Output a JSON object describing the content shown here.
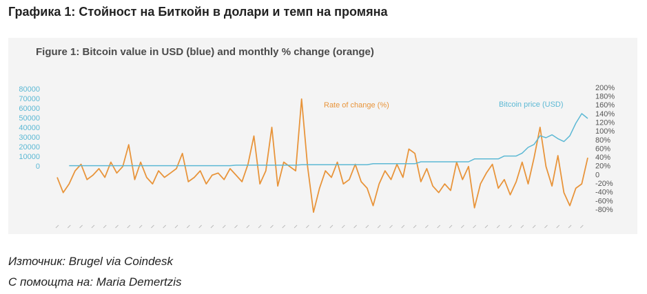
{
  "heading": "Графика 1: Стойност на Биткойн в долари и темп на промяна",
  "chart_data": {
    "type": "line",
    "title": "Figure 1: Bitcoin value in USD (blue) and monthly % change (orange)",
    "categories": [
      null,
      null,
      null,
      null,
      null,
      null,
      null,
      null,
      null,
      null,
      null,
      null,
      null,
      null,
      null,
      null,
      null,
      null,
      null,
      null,
      null,
      null,
      null,
      null,
      null,
      null,
      null,
      null,
      null,
      null,
      null,
      null,
      null,
      null,
      null,
      null,
      null,
      null,
      null,
      null,
      null,
      null,
      null,
      null,
      null,
      null,
      null,
      null,
      null,
      null,
      null,
      null,
      null,
      null,
      null,
      null,
      null,
      null,
      null,
      null,
      null,
      null,
      null,
      null,
      null,
      null,
      null,
      null,
      null,
      null,
      null,
      null,
      null,
      null,
      null,
      null,
      null,
      null,
      null,
      null,
      null,
      null,
      null,
      null,
      null,
      null,
      null,
      null,
      null,
      null
    ],
    "series": [
      {
        "name": "Rate of change (%)",
        "color": "#e8943a",
        "axis": "y2",
        "values": [
          -5,
          -40,
          -20,
          10,
          25,
          -10,
          0,
          15,
          -5,
          30,
          5,
          20,
          70,
          -10,
          30,
          -5,
          -20,
          10,
          -5,
          5,
          15,
          50,
          -15,
          -5,
          10,
          -20,
          0,
          5,
          -10,
          15,
          0,
          -15,
          25,
          90,
          -20,
          10,
          110,
          -25,
          30,
          20,
          10,
          175,
          20,
          -85,
          -30,
          10,
          -5,
          30,
          -20,
          -10,
          25,
          -15,
          -30,
          -70,
          -20,
          10,
          -10,
          25,
          -5,
          60,
          50,
          -15,
          15,
          -25,
          -40,
          -20,
          -35,
          30,
          -10,
          20,
          -75,
          -20,
          5,
          25,
          -30,
          -10,
          -45,
          -15,
          30,
          -20,
          40,
          110,
          20,
          -25,
          45,
          -40,
          -70,
          -30,
          -20,
          40
        ]
      },
      {
        "name": "Bitcoin price (USD)",
        "color": "#5bb8d4",
        "axis": "y",
        "values": [
          null,
          null,
          1000,
          1000,
          1000,
          1000,
          1000,
          1000,
          1000,
          1000,
          1000,
          1000,
          1000,
          1000,
          1000,
          1000,
          1000,
          1000,
          1000,
          1000,
          1000,
          1000,
          1000,
          1000,
          1000,
          1000,
          1000,
          1000,
          1000,
          1000,
          1500,
          1500,
          1500,
          1500,
          1500,
          1500,
          1500,
          1500,
          1500,
          1500,
          1500,
          2000,
          2000,
          2000,
          2000,
          2000,
          2000,
          2000,
          2000,
          2000,
          2000,
          2000,
          2000,
          3000,
          3000,
          3000,
          3000,
          3000,
          3000,
          3000,
          3000,
          5000,
          5000,
          5000,
          5000,
          5000,
          5000,
          5000,
          5000,
          5000,
          8000,
          8000,
          8000,
          8000,
          8000,
          11000,
          11000,
          11000,
          14000,
          20000,
          23000,
          32000,
          30000,
          33000,
          29000,
          26000,
          32000,
          45000,
          55000,
          50000
        ]
      }
    ],
    "ylim": [
      0,
      80000
    ],
    "yticks": [
      80000,
      70000,
      60000,
      50000,
      40000,
      30000,
      20000,
      10000,
      0
    ],
    "y2lim": [
      -80,
      200
    ],
    "y2ticks": [
      {
        "value": 200,
        "label": "200%"
      },
      {
        "value": 180,
        "label": "180%"
      },
      {
        "value": 160,
        "label": "160%"
      },
      {
        "value": 140,
        "label": "140%"
      },
      {
        "value": 120,
        "label": "120%"
      },
      {
        "value": 100,
        "label": "100%"
      },
      {
        "value": 80,
        "label": "80%"
      },
      {
        "value": 60,
        "label": "60%"
      },
      {
        "value": 40,
        "label": "40%"
      },
      {
        "value": 20,
        "label": "20%"
      },
      0,
      {
        "value": -20,
        "label": "-20%"
      },
      {
        "value": -40,
        "label": "-40%"
      },
      {
        "value": -60,
        "label": "-60%"
      },
      {
        "value": -80,
        "label": "-80%"
      }
    ],
    "grid": false
  },
  "footer": {
    "source": "Източник: Brugel via Coindesk",
    "credit": "С помощта на: Maria Demertzis"
  }
}
